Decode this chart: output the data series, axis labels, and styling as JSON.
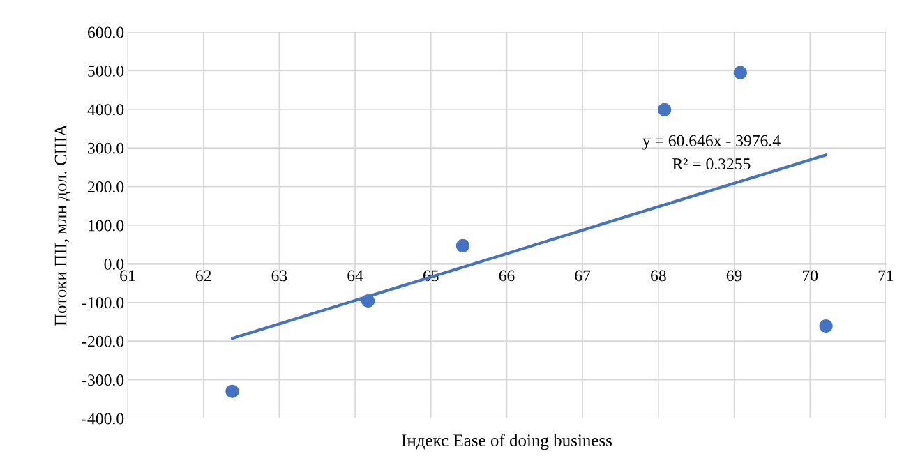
{
  "chart_data": {
    "type": "scatter",
    "xlabel": "Індекс Ease of doing business",
    "ylabel": "Потоки ПІІ, млн дол. США",
    "series": [
      {
        "color": "#4472c4",
        "marker": "circle",
        "x": [
          62.38,
          64.17,
          65.42,
          68.08,
          69.08,
          70.21
        ],
        "values": [
          -330,
          -96,
          47,
          399,
          495,
          -161
        ]
      },
      {
        "type": "line",
        "color": "#4472c4",
        "marker": "none",
        "line_style": "solid",
        "x": [
          62.38,
          70.21
        ],
        "values": [
          -193,
          282
        ]
      }
    ],
    "annotations": [
      "y = 60.646x - 3976.4",
      "R² = 0.3255"
    ],
    "xlim": [
      61,
      71
    ],
    "xticks": [
      61,
      62,
      63,
      64,
      65,
      66,
      67,
      68,
      69,
      70,
      71
    ],
    "ylim": [
      -400,
      600
    ],
    "yticks": [
      {
        "value": -400,
        "label": "-400.0"
      },
      {
        "value": -300,
        "label": "-300.0"
      },
      {
        "value": -200,
        "label": "-200.0"
      },
      {
        "value": -100,
        "label": "-100.0"
      },
      {
        "value": 0,
        "label": "0.0"
      },
      {
        "value": 100,
        "label": "100.0"
      },
      {
        "value": 200,
        "label": "200.0"
      },
      {
        "value": 300,
        "label": "300.0"
      },
      {
        "value": 400,
        "label": "400.0"
      },
      {
        "value": 500,
        "label": "500.0"
      },
      {
        "value": 600,
        "label": "600.0"
      }
    ],
    "grid": true,
    "legend": false
  }
}
